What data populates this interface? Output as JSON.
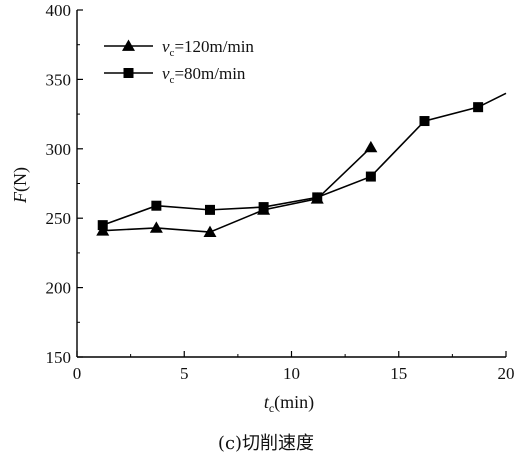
{
  "chart_data": {
    "type": "line",
    "caption": "(c)切削速度",
    "xlabel": {
      "var": "t",
      "sub": "c",
      "unit": "(min)"
    },
    "ylabel": {
      "var": "F",
      "unit": "(N)"
    },
    "xlim": [
      0,
      20
    ],
    "ylim": [
      150,
      400
    ],
    "xticks": [
      0,
      5,
      10,
      15,
      20
    ],
    "yticks": [
      150,
      200,
      250,
      300,
      350,
      400
    ],
    "grid": false,
    "legend_position": "top-left",
    "series": [
      {
        "name": "vc=120m/min",
        "legend": {
          "var": "v",
          "sub": "c",
          "rest": "=120m/min"
        },
        "marker": "triangle",
        "color": "#000000",
        "x": [
          1.2,
          3.7,
          6.2,
          8.7,
          11.2,
          13.7
        ],
        "y": [
          241,
          243,
          240,
          256,
          264,
          301
        ]
      },
      {
        "name": "vc=80m/min",
        "legend": {
          "var": "v",
          "sub": "c",
          "rest": "=80m/min"
        },
        "marker": "square",
        "color": "#000000",
        "x": [
          1.2,
          3.7,
          6.2,
          8.7,
          11.2,
          13.7,
          16.2,
          18.7,
          20
        ],
        "y": [
          245,
          259,
          256,
          258,
          265,
          280,
          320,
          330,
          340
        ],
        "marker_mask": [
          true,
          true,
          true,
          true,
          true,
          true,
          true,
          true,
          false
        ]
      }
    ]
  }
}
